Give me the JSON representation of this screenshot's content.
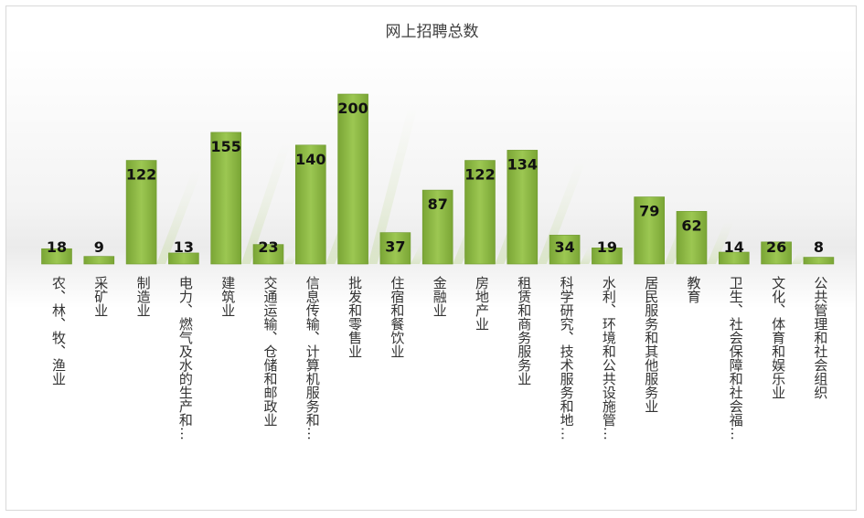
{
  "chart_data": {
    "type": "bar",
    "title": "网上招聘总数",
    "xlabel": "",
    "ylabel": "",
    "ylim": [
      0,
      200
    ],
    "grid": false,
    "legend": "none",
    "bar_color": "#8fbc45",
    "categories": [
      "农、林、牧、渔业",
      "采矿业",
      "制造业",
      "电力、燃气及水的生产和…",
      "建筑业",
      "交通运输、仓储和邮政业",
      "信息传输、计算机服务和…",
      "批发和零售业",
      "住宿和餐饮业",
      "金融业",
      "房地产业",
      "租赁和商务服务业",
      "科学研究、技术服务和地…",
      "水利、环境和公共设施管…",
      "居民服务和其他服务业",
      "教育",
      "卫生、社会保障和社会福…",
      "文化、体育和娱乐业",
      "公共管理和社会组织"
    ],
    "values": [
      18,
      9,
      122,
      13,
      155,
      23,
      140,
      200,
      37,
      87,
      122,
      134,
      34,
      19,
      79,
      62,
      14,
      26,
      8
    ]
  }
}
